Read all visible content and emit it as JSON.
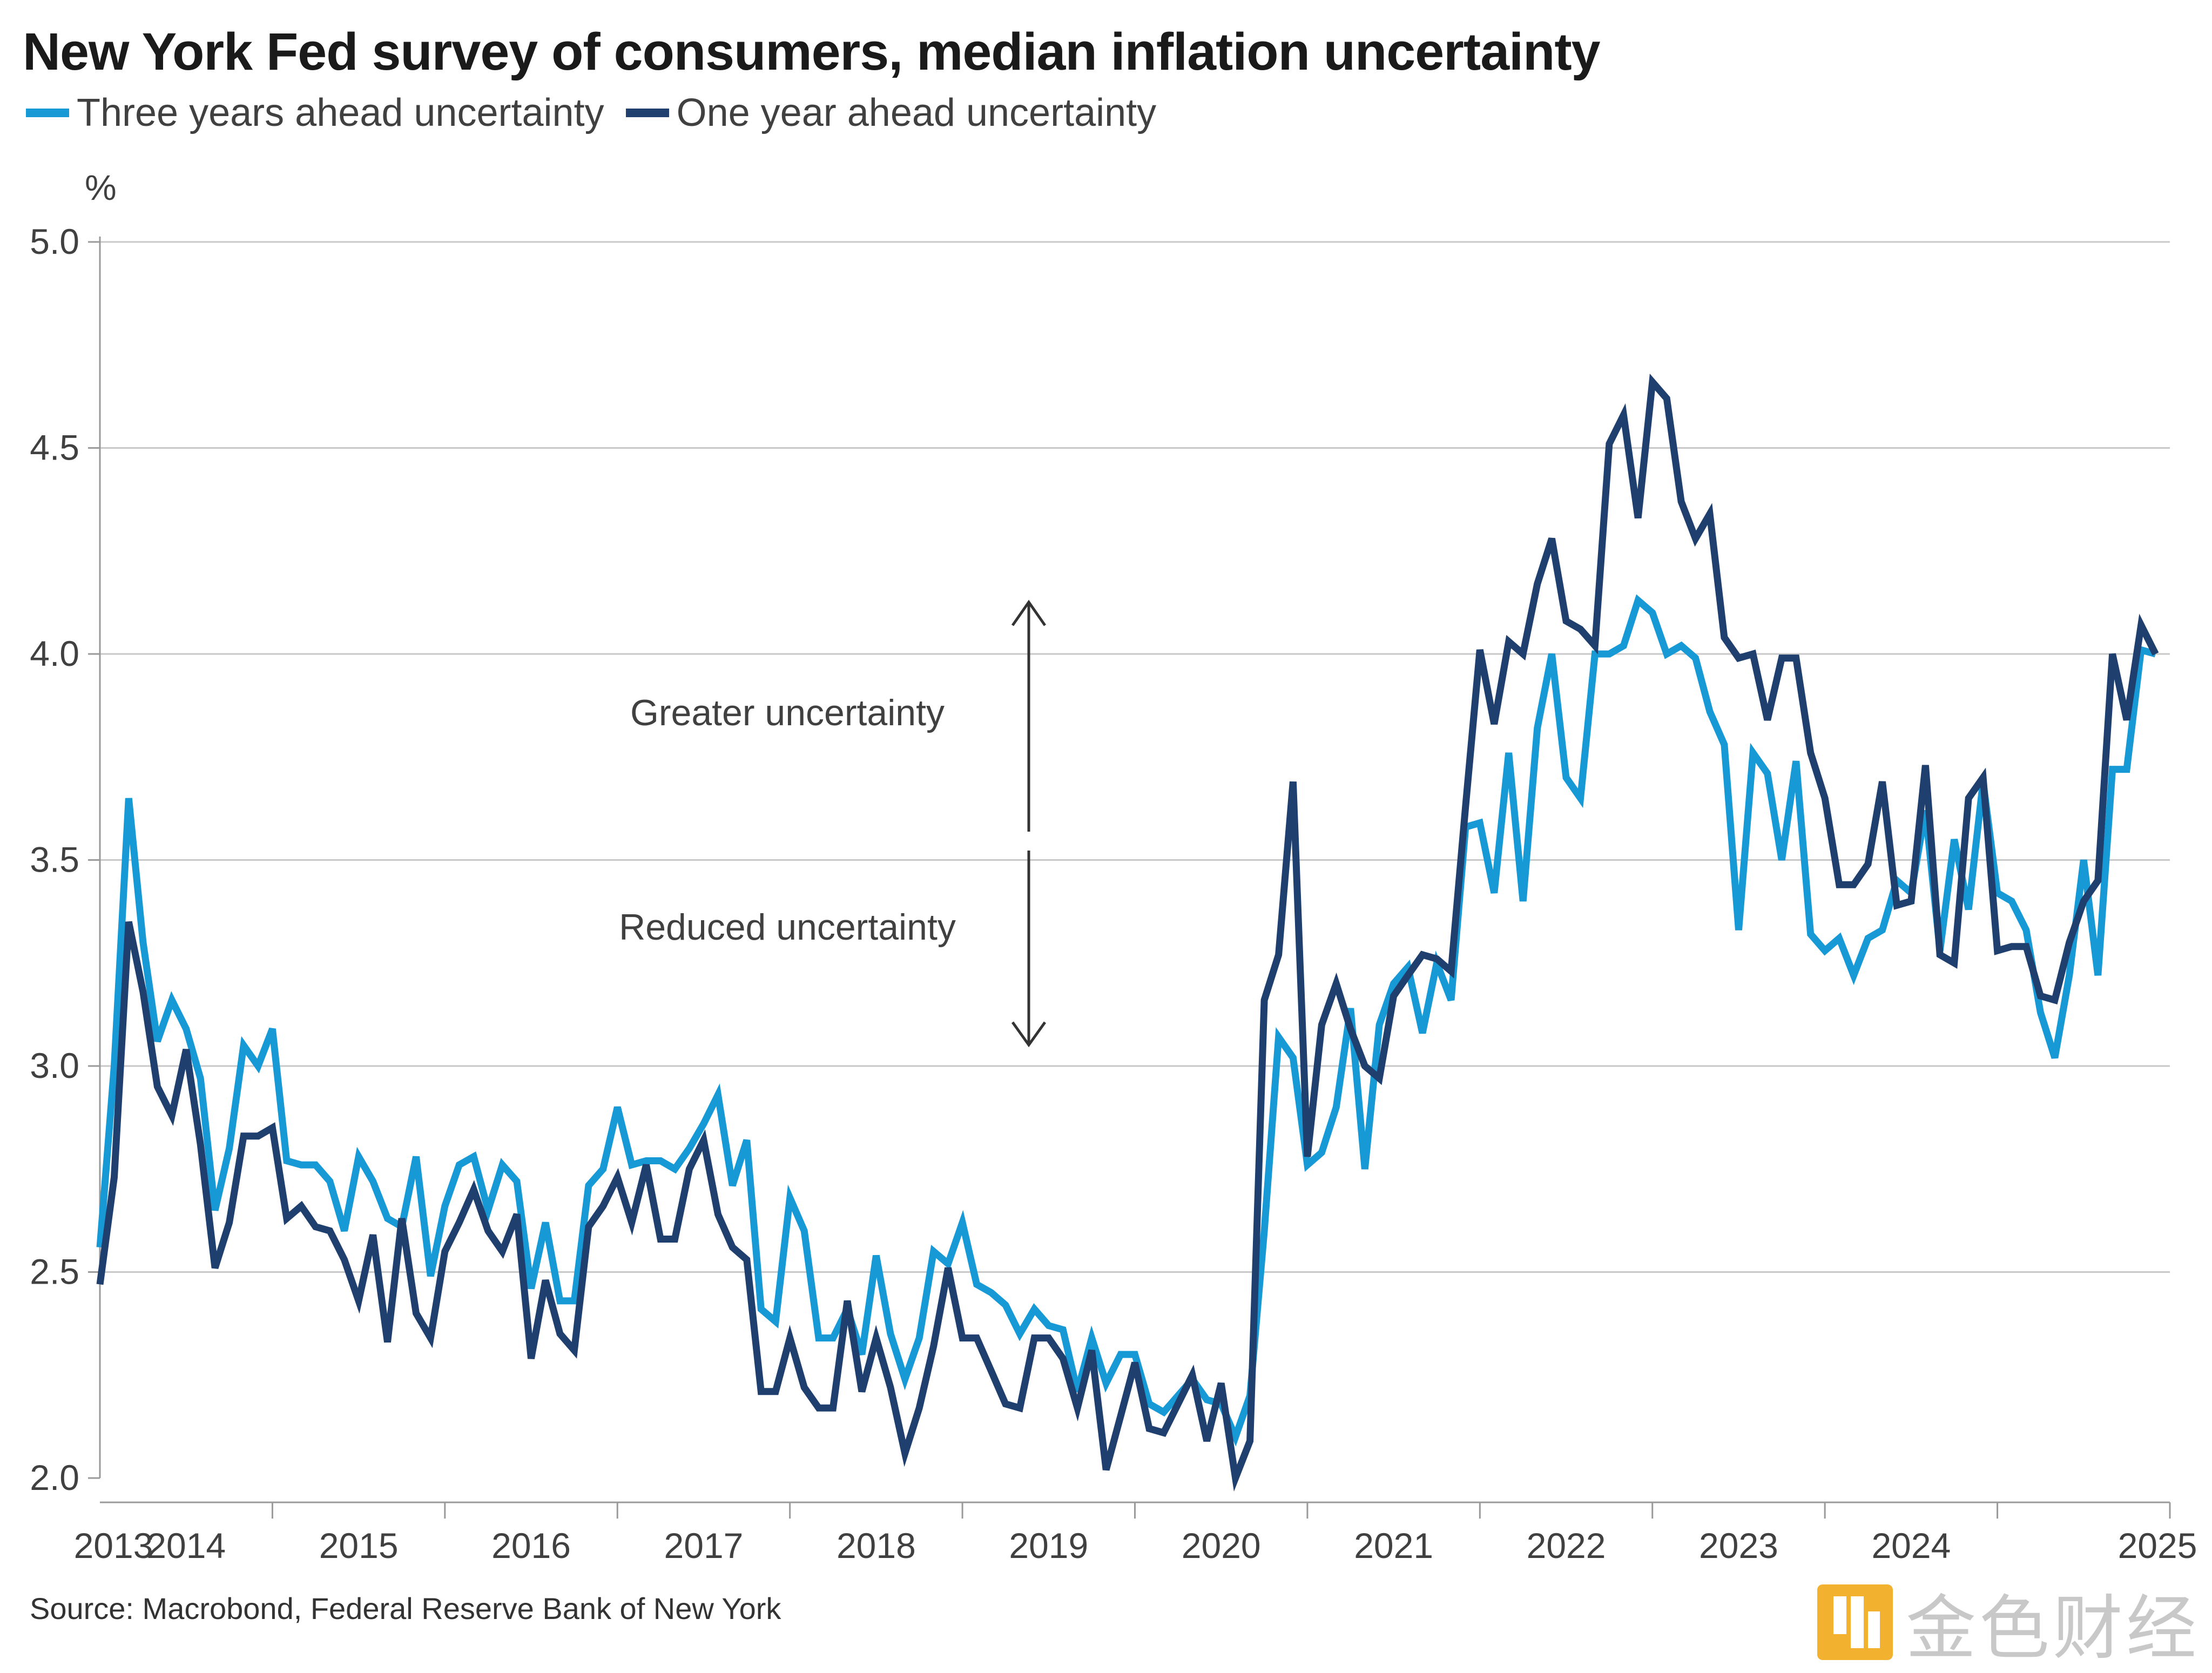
{
  "chart_data": {
    "type": "line",
    "title": "New York Fed survey of consumers, median inflation uncertainty",
    "ylabel": "%",
    "ylim": [
      2.0,
      5.0
    ],
    "xlim": [
      2013.0,
      2025.0
    ],
    "yticks": [
      "2.0",
      "2.5",
      "3.0",
      "3.5",
      "4.0",
      "4.5",
      "5.0"
    ],
    "xticks": [
      "2013",
      "2014",
      "2015",
      "2016",
      "2017",
      "2018",
      "2019",
      "2020",
      "2021",
      "2022",
      "2023",
      "2024",
      "2025"
    ],
    "grid": "horizontal",
    "legend_position": "top-left",
    "colors": {
      "three_year": "#1799d6",
      "one_year": "#1f3f6e",
      "grid": "#c8c8c8",
      "axis": "#9a9a9a",
      "arrow": "#333333"
    },
    "annotations": {
      "upper": "Greater uncertainty",
      "lower": "Reduced uncertainty"
    },
    "series": [
      {
        "name": "Three years ahead uncertainty",
        "x": [
          2013.0,
          2013.083,
          2013.167,
          2013.25,
          2013.333,
          2013.417,
          2013.5,
          2013.583,
          2013.667,
          2013.75,
          2013.833,
          2013.917,
          2014.0,
          2014.083,
          2014.167,
          2014.25,
          2014.333,
          2014.417,
          2014.5,
          2014.583,
          2014.667,
          2014.75,
          2014.833,
          2014.917,
          2015.0,
          2015.083,
          2015.167,
          2015.25,
          2015.333,
          2015.417,
          2015.5,
          2015.583,
          2015.667,
          2015.75,
          2015.833,
          2015.917,
          2016.0,
          2016.083,
          2016.167,
          2016.25,
          2016.333,
          2016.417,
          2016.5,
          2016.583,
          2016.667,
          2016.75,
          2016.833,
          2016.917,
          2017.0,
          2017.083,
          2017.167,
          2017.25,
          2017.333,
          2017.417,
          2017.5,
          2017.583,
          2017.667,
          2017.75,
          2017.833,
          2017.917,
          2018.0,
          2018.083,
          2018.167,
          2018.25,
          2018.333,
          2018.417,
          2018.5,
          2018.583,
          2018.667,
          2018.75,
          2018.833,
          2018.917,
          2019.0,
          2019.083,
          2019.167,
          2019.25,
          2019.333,
          2019.417,
          2019.5,
          2019.583,
          2019.667,
          2019.75,
          2019.833,
          2019.917,
          2020.0,
          2020.083,
          2020.167,
          2020.25,
          2020.333,
          2020.417,
          2020.5,
          2020.583,
          2020.667,
          2020.75,
          2020.833,
          2020.917,
          2021.0,
          2021.083,
          2021.167,
          2021.25,
          2021.333,
          2021.417,
          2021.5,
          2021.583,
          2021.667,
          2021.75,
          2021.833,
          2021.917,
          2022.0,
          2022.083,
          2022.167,
          2022.25,
          2022.333,
          2022.417,
          2022.5,
          2022.583,
          2022.667,
          2022.75,
          2022.833,
          2022.917,
          2023.0,
          2023.083,
          2023.167,
          2023.25,
          2023.333,
          2023.417,
          2023.5,
          2023.583,
          2023.667,
          2023.75,
          2023.833,
          2023.917,
          2024.0,
          2024.083,
          2024.167,
          2024.25,
          2024.333,
          2024.417,
          2024.5,
          2024.583,
          2024.667,
          2024.75,
          2024.833,
          2024.917
        ],
        "values": [
          2.56,
          3.0,
          3.65,
          3.3,
          3.06,
          3.16,
          3.09,
          2.97,
          2.65,
          2.8,
          3.05,
          3.0,
          3.09,
          2.77,
          2.76,
          2.76,
          2.72,
          2.6,
          2.78,
          2.72,
          2.63,
          2.61,
          2.78,
          2.49,
          2.66,
          2.76,
          2.78,
          2.65,
          2.76,
          2.72,
          2.46,
          2.62,
          2.43,
          2.43,
          2.71,
          2.75,
          2.9,
          2.76,
          2.77,
          2.77,
          2.75,
          2.8,
          2.86,
          2.93,
          2.71,
          2.82,
          2.41,
          2.38,
          2.68,
          2.6,
          2.34,
          2.34,
          2.41,
          2.3,
          2.54,
          2.35,
          2.24,
          2.34,
          2.55,
          2.52,
          2.62,
          2.47,
          2.45,
          2.42,
          2.35,
          2.41,
          2.37,
          2.36,
          2.21,
          2.34,
          2.23,
          2.3,
          2.3,
          2.18,
          2.16,
          2.2,
          2.24,
          2.19,
          2.18,
          2.1,
          2.2,
          2.6,
          3.07,
          3.02,
          2.76,
          2.79,
          2.9,
          3.14,
          2.75,
          3.1,
          3.2,
          3.24,
          3.08,
          3.25,
          3.16,
          3.58,
          3.59,
          3.42,
          3.76,
          3.4,
          3.82,
          4.0,
          3.7,
          3.65,
          4.0,
          4.0,
          4.02,
          4.13,
          4.1,
          4.0,
          4.02,
          3.99,
          3.86,
          3.78,
          3.33,
          3.76,
          3.71,
          3.5,
          3.74,
          3.32,
          3.28,
          3.31,
          3.22,
          3.31,
          3.33,
          3.45,
          3.42,
          3.62,
          3.28,
          3.55,
          3.38,
          3.69,
          3.42,
          3.4,
          3.33,
          3.13,
          3.02,
          3.22,
          3.5,
          3.22,
          3.72,
          3.72,
          4.01,
          4.0
        ]
      },
      {
        "name": "One year ahead uncertainty",
        "x": [
          2013.0,
          2013.083,
          2013.167,
          2013.25,
          2013.333,
          2013.417,
          2013.5,
          2013.583,
          2013.667,
          2013.75,
          2013.833,
          2013.917,
          2014.0,
          2014.083,
          2014.167,
          2014.25,
          2014.333,
          2014.417,
          2014.5,
          2014.583,
          2014.667,
          2014.75,
          2014.833,
          2014.917,
          2015.0,
          2015.083,
          2015.167,
          2015.25,
          2015.333,
          2015.417,
          2015.5,
          2015.583,
          2015.667,
          2015.75,
          2015.833,
          2015.917,
          2016.0,
          2016.083,
          2016.167,
          2016.25,
          2016.333,
          2016.417,
          2016.5,
          2016.583,
          2016.667,
          2016.75,
          2016.833,
          2016.917,
          2017.0,
          2017.083,
          2017.167,
          2017.25,
          2017.333,
          2017.417,
          2017.5,
          2017.583,
          2017.667,
          2017.75,
          2017.833,
          2017.917,
          2018.0,
          2018.083,
          2018.167,
          2018.25,
          2018.333,
          2018.417,
          2018.5,
          2018.583,
          2018.667,
          2018.75,
          2018.833,
          2018.917,
          2019.0,
          2019.083,
          2019.167,
          2019.25,
          2019.333,
          2019.417,
          2019.5,
          2019.583,
          2019.667,
          2019.75,
          2019.833,
          2019.917,
          2020.0,
          2020.083,
          2020.167,
          2020.25,
          2020.333,
          2020.417,
          2020.5,
          2020.583,
          2020.667,
          2020.75,
          2020.833,
          2020.917,
          2021.0,
          2021.083,
          2021.167,
          2021.25,
          2021.333,
          2021.417,
          2021.5,
          2021.583,
          2021.667,
          2021.75,
          2021.833,
          2021.917,
          2022.0,
          2022.083,
          2022.167,
          2022.25,
          2022.333,
          2022.417,
          2022.5,
          2022.583,
          2022.667,
          2022.75,
          2022.833,
          2022.917,
          2023.0,
          2023.083,
          2023.167,
          2023.25,
          2023.333,
          2023.417,
          2023.5,
          2023.583,
          2023.667,
          2023.75,
          2023.833,
          2023.917,
          2024.0,
          2024.083,
          2024.167,
          2024.25,
          2024.333,
          2024.417,
          2024.5,
          2024.583,
          2024.667,
          2024.75,
          2024.833,
          2024.917
        ],
        "values": [
          2.47,
          2.73,
          3.35,
          3.18,
          2.95,
          2.88,
          3.04,
          2.81,
          2.51,
          2.62,
          2.83,
          2.83,
          2.85,
          2.63,
          2.66,
          2.61,
          2.6,
          2.53,
          2.43,
          2.59,
          2.33,
          2.63,
          2.4,
          2.34,
          2.55,
          2.62,
          2.7,
          2.6,
          2.55,
          2.64,
          2.29,
          2.48,
          2.35,
          2.31,
          2.61,
          2.66,
          2.73,
          2.62,
          2.76,
          2.58,
          2.58,
          2.75,
          2.82,
          2.64,
          2.56,
          2.53,
          2.21,
          2.21,
          2.34,
          2.22,
          2.17,
          2.17,
          2.43,
          2.21,
          2.34,
          2.22,
          2.06,
          2.17,
          2.32,
          2.51,
          2.34,
          2.34,
          2.26,
          2.18,
          2.17,
          2.34,
          2.34,
          2.29,
          2.17,
          2.31,
          2.02,
          2.15,
          2.28,
          2.12,
          2.11,
          2.18,
          2.25,
          2.09,
          2.23,
          2.0,
          2.09,
          3.16,
          3.27,
          3.69,
          2.78,
          3.1,
          3.2,
          3.09,
          3.0,
          2.97,
          3.17,
          3.22,
          3.27,
          3.26,
          3.23,
          3.63,
          4.01,
          3.83,
          4.03,
          4.0,
          4.17,
          4.28,
          4.08,
          4.06,
          4.02,
          4.51,
          4.58,
          4.33,
          4.66,
          4.62,
          4.37,
          4.28,
          4.34,
          4.04,
          3.99,
          4.0,
          3.84,
          3.99,
          3.99,
          3.76,
          3.65,
          3.44,
          3.44,
          3.49,
          3.69,
          3.39,
          3.4,
          3.73,
          3.27,
          3.25,
          3.65,
          3.7,
          3.28,
          3.29,
          3.29,
          3.17,
          3.16,
          3.3,
          3.4,
          3.45,
          4.0,
          3.84,
          4.07,
          4.0
        ]
      }
    ]
  },
  "source": "Source: Macrobond, Federal Reserve Bank of New York",
  "watermark": {
    "text": "金色财经"
  }
}
